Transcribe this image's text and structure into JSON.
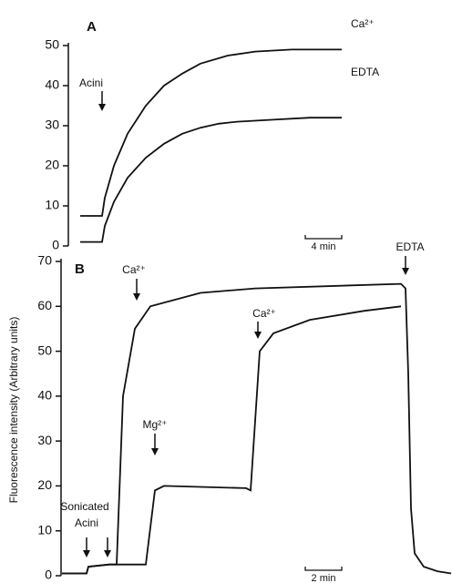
{
  "chart_data": [
    {
      "type": "line",
      "title": "A",
      "ylabel": "Fluorescence intensity (Arbitrary units)",
      "xlim": [
        0,
        30
      ],
      "ylim": [
        0,
        50
      ],
      "yticks": [
        0,
        10,
        20,
        30,
        40,
        50
      ],
      "series": [
        {
          "name": "Ca²⁺",
          "color": "#111111",
          "x": [
            0.8,
            3.2,
            3.5,
            4.5,
            6,
            8,
            10,
            12,
            14,
            17,
            20,
            24,
            29.5
          ],
          "values": [
            7.5,
            7.5,
            12,
            20,
            28,
            35,
            40,
            43,
            45.5,
            47.5,
            48.5,
            49,
            49
          ]
        },
        {
          "name": "EDTA",
          "color": "#111111",
          "x": [
            0.8,
            3.2,
            3.5,
            4.5,
            6,
            8,
            10,
            12,
            14,
            16,
            18,
            22,
            26,
            29.5
          ],
          "values": [
            1,
            1,
            5,
            11,
            17,
            22,
            25.5,
            28,
            29.5,
            30.5,
            31,
            31.5,
            32,
            32
          ]
        }
      ],
      "annotations": [
        "Acini"
      ],
      "scalebar": {
        "value": 4,
        "label": "4 min"
      }
    },
    {
      "type": "line",
      "title": "B",
      "xlim": [
        0,
        21.7
      ],
      "ylim": [
        0,
        70
      ],
      "yticks": [
        0,
        10,
        20,
        30,
        40,
        50,
        60,
        70
      ],
      "series": [
        {
          "color": "#111111",
          "x": [
            0.3,
            1.65,
            1.75,
            2.9,
            3.3,
            3.65,
            4.3,
            5.15,
            7.9,
            10.9,
            18.9,
            19.15,
            19.3,
            19.45,
            19.65,
            20.15,
            20.9,
            21.65
          ],
          "values": [
            0.5,
            0.5,
            2,
            2.5,
            2.5,
            40,
            55,
            60,
            63,
            64,
            65,
            64,
            45,
            15,
            5,
            2,
            1,
            0.5
          ]
        },
        {
          "color": "#111111",
          "x": [
            0.3,
            1.65,
            1.75,
            2.9,
            4.9,
            5.4,
            5.9,
            10.4,
            10.65,
            11.15,
            11.9,
            13.9,
            16.9,
            18.9
          ],
          "values": [
            0.5,
            0.5,
            2,
            2.5,
            2.5,
            19,
            20,
            19.5,
            19,
            50,
            54,
            57,
            59,
            60
          ]
        }
      ],
      "annotations": [
        "Ca²⁺",
        "Ca²⁺",
        "Mg²⁺",
        "EDTA",
        "Sonicated",
        "Acini"
      ],
      "scalebar": {
        "value": 2,
        "label": "2 min"
      }
    }
  ]
}
